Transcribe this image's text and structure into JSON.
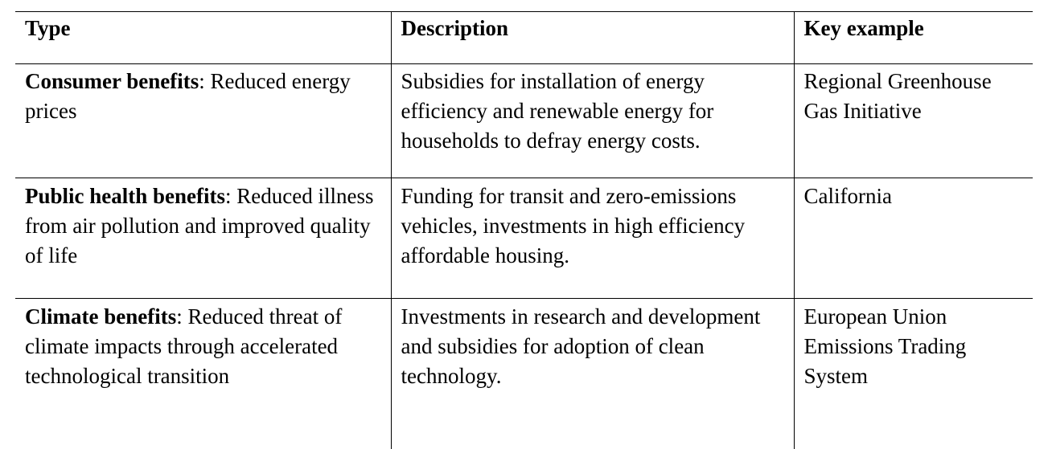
{
  "table": {
    "headers": [
      "Type",
      "Description",
      "Key example"
    ],
    "rows": [
      {
        "type_bold": "Consumer benefits",
        "type_rest": ": Reduced energy prices",
        "description": "Subsidies for installation of energy efficiency and renewable energy for households to defray energy costs.",
        "example": "Regional Greenhouse Gas Initiative"
      },
      {
        "type_bold": "Public health benefits",
        "type_rest": ": Reduced illness from air pollution and improved quality of life",
        "description": "Funding for transit and zero-emissions vehicles, investments in high efficiency affordable housing.",
        "example": "California"
      },
      {
        "type_bold": "Climate benefits",
        "type_rest": ": Reduced threat of climate impacts through accelerated technological transition",
        "description": "Investments in research and development and subsidies for adoption of clean technology.",
        "example": "European Union Emissions Trading System"
      }
    ]
  }
}
